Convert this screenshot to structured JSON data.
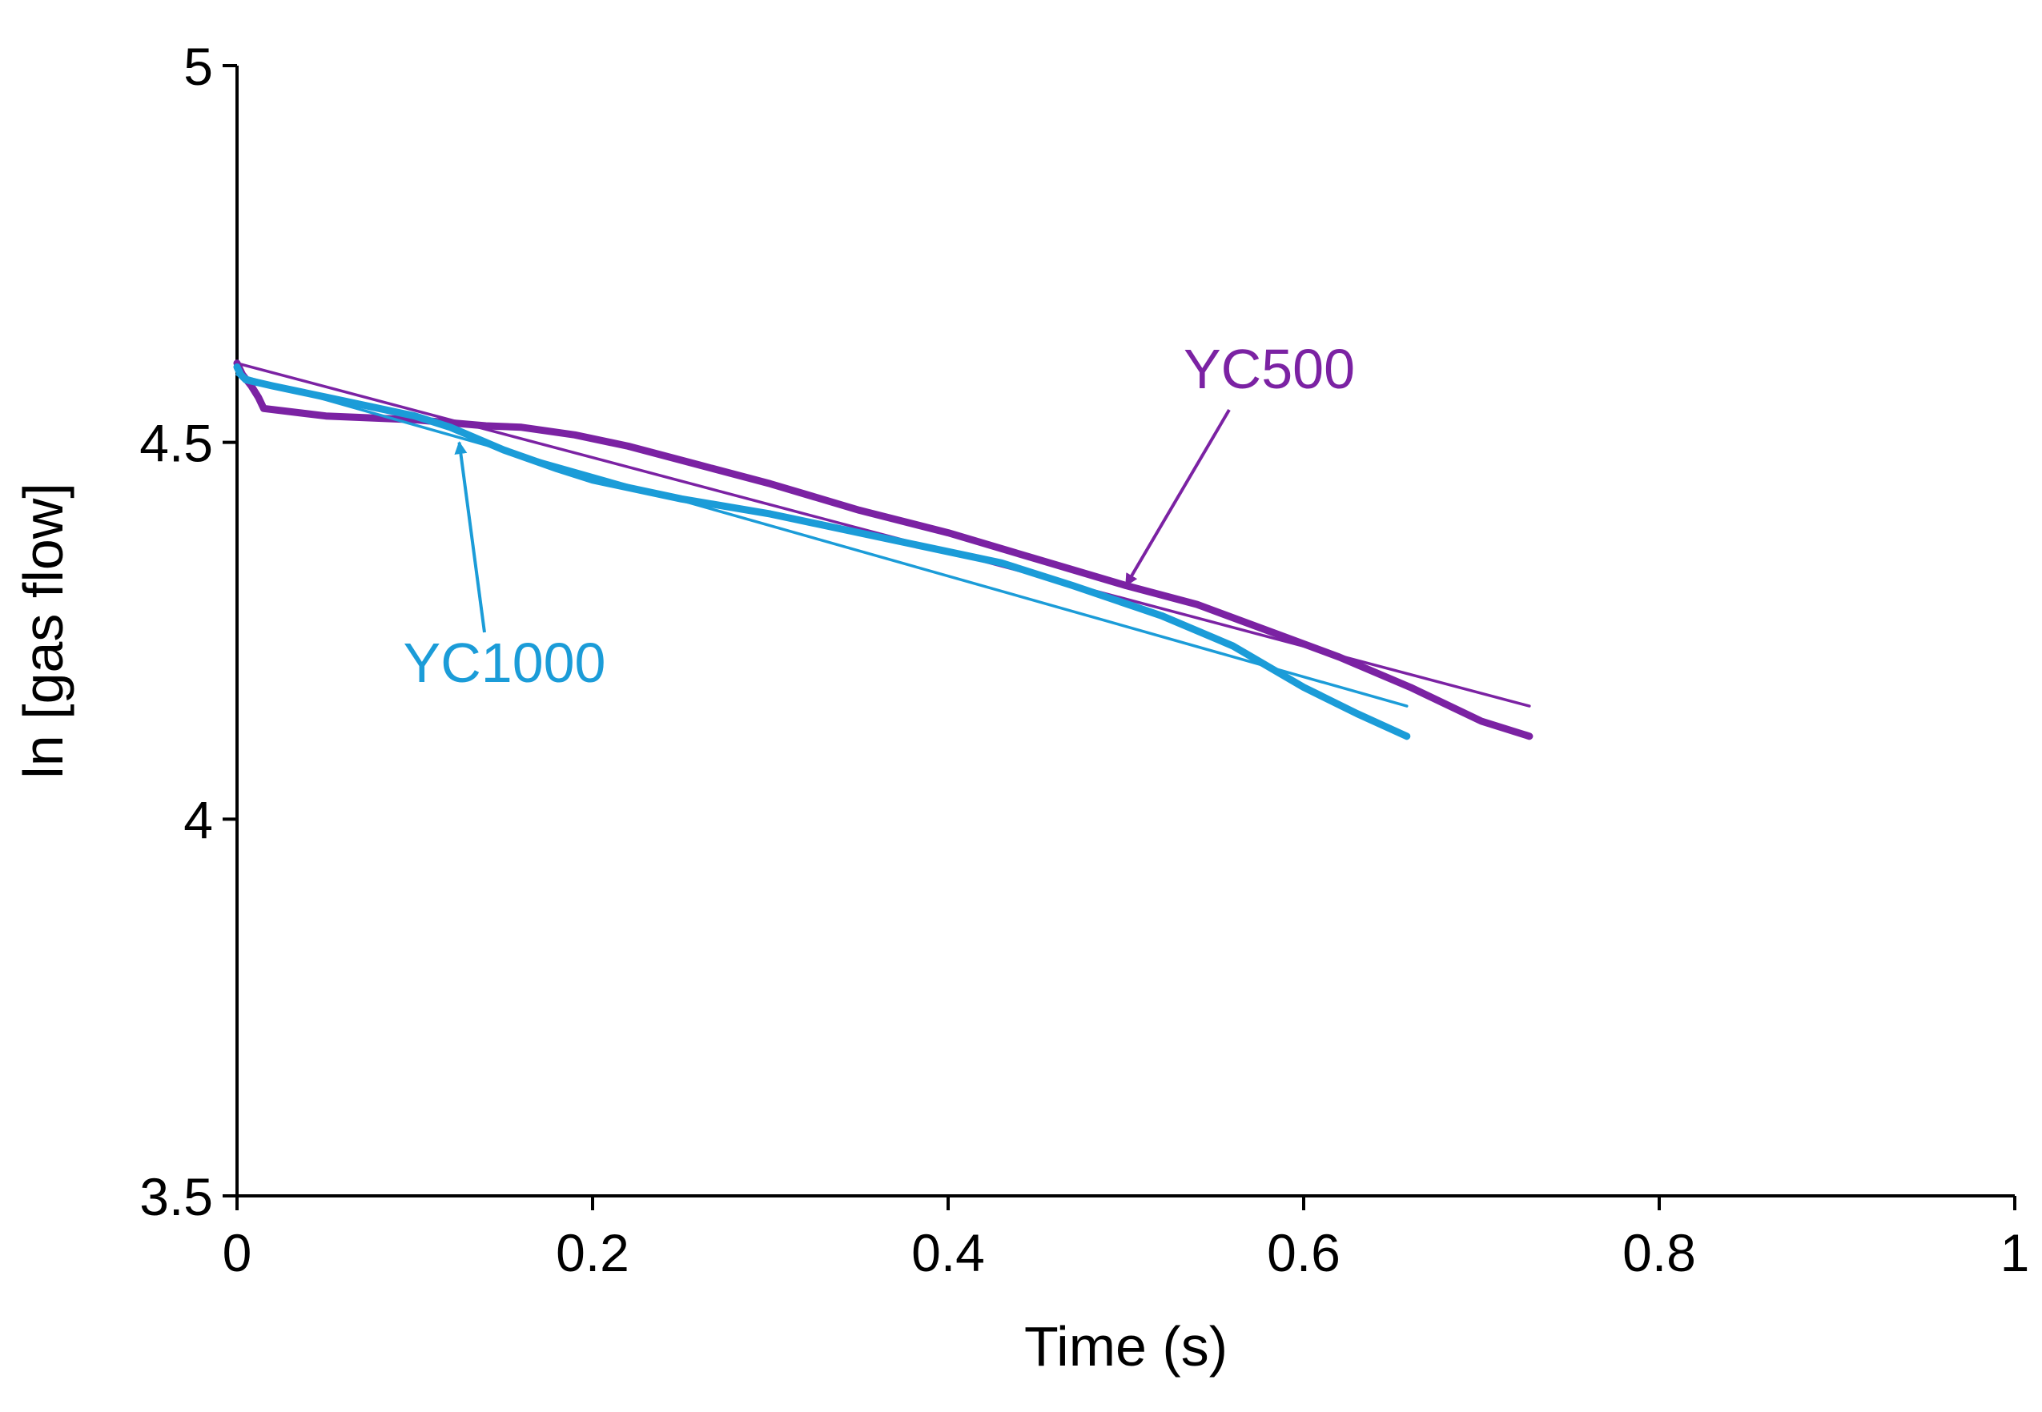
{
  "chart_data": {
    "type": "line",
    "xlabel": "Time (s)",
    "ylabel": "ln [gas flow]",
    "xlim": [
      0,
      1
    ],
    "ylim": [
      3.5,
      5
    ],
    "x_ticks": [
      0,
      0.2,
      0.4,
      0.6,
      0.8,
      1
    ],
    "x_tick_labels": [
      "0",
      "0.2",
      "0.4",
      "0.6",
      "0.8",
      "1"
    ],
    "y_ticks": [
      3.5,
      4,
      4.5,
      5
    ],
    "y_tick_labels": [
      "3.5",
      "4",
      "4.5",
      "5"
    ],
    "grid": false,
    "series": [
      {
        "name": "YC500",
        "color": "#7B22A3",
        "x": [
          0,
          0.003,
          0.008,
          0.012,
          0.015,
          0.05,
          0.1,
          0.14,
          0.16,
          0.19,
          0.22,
          0.26,
          0.3,
          0.35,
          0.4,
          0.45,
          0.5,
          0.54,
          0.58,
          0.62,
          0.66,
          0.7,
          0.727
        ],
        "values": [
          4.605,
          4.59,
          4.575,
          4.56,
          4.545,
          4.535,
          4.53,
          4.522,
          4.52,
          4.51,
          4.495,
          4.47,
          4.445,
          4.41,
          4.38,
          4.345,
          4.31,
          4.285,
          4.25,
          4.215,
          4.175,
          4.13,
          4.11
        ]
      },
      {
        "name": "YC500 fit",
        "color": "#7B22A3",
        "x": [
          0,
          0.727
        ],
        "values": [
          4.605,
          4.15
        ]
      },
      {
        "name": "YC1000",
        "color": "#1B9CD8",
        "x": [
          0,
          0.002,
          0.005,
          0.02,
          0.05,
          0.08,
          0.1,
          0.12,
          0.15,
          0.18,
          0.2,
          0.25,
          0.3,
          0.35,
          0.4,
          0.43,
          0.47,
          0.52,
          0.56,
          0.6,
          0.63,
          0.658
        ],
        "values": [
          4.6,
          4.59,
          4.583,
          4.575,
          4.56,
          4.545,
          4.535,
          4.52,
          4.49,
          4.465,
          4.45,
          4.425,
          4.405,
          4.38,
          4.355,
          4.34,
          4.31,
          4.27,
          4.23,
          4.175,
          4.14,
          4.11
        ]
      },
      {
        "name": "YC1000 fit",
        "color": "#1B9CD8",
        "x": [
          0,
          0.658
        ],
        "values": [
          4.59,
          4.15
        ]
      }
    ],
    "annotations": [
      {
        "text": "YC500",
        "color": "#7B22A3",
        "arrow_to": [
          0.5,
          4.31
        ]
      },
      {
        "text": "YC1000",
        "color": "#1B9CD8",
        "arrow_to": [
          0.125,
          4.5
        ]
      }
    ]
  }
}
